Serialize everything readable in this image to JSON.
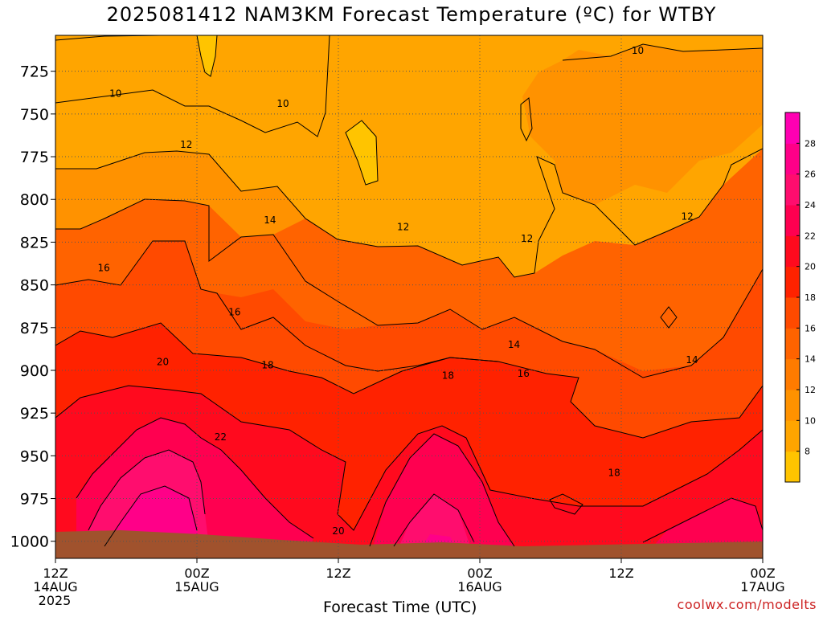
{
  "title": "2025081412 NAM3KM Forecast Temperature (ºC) for WTBY",
  "credit": "coolwx.com/modelts",
  "chart_data": {
    "type": "heatmap",
    "title": "2025081412 NAM3KM Forecast Temperature (ºC) for WTBY",
    "xlabel": "Forecast Time (UTC)",
    "ylabel": "",
    "x_ticks": [
      {
        "hour": 0,
        "line1": "12Z",
        "line2": "14AUG",
        "line3": "2025"
      },
      {
        "hour": 12,
        "line1": "00Z",
        "line2": "15AUG",
        "line3": ""
      },
      {
        "hour": 24,
        "line1": "12Z",
        "line2": "",
        "line3": ""
      },
      {
        "hour": 36,
        "line1": "00Z",
        "line2": "16AUG",
        "line3": ""
      },
      {
        "hour": 48,
        "line1": "12Z",
        "line2": "",
        "line3": ""
      },
      {
        "hour": 60,
        "line1": "00Z",
        "line2": "17AUG",
        "line3": ""
      }
    ],
    "y_ticks": [
      "725",
      "750",
      "775",
      "800",
      "825",
      "850",
      "875",
      "900",
      "925",
      "950",
      "975",
      "1000"
    ],
    "y_values": [
      725,
      750,
      775,
      800,
      825,
      850,
      875,
      900,
      925,
      950,
      975,
      1000
    ],
    "xlim": [
      0,
      60
    ],
    "ylim": [
      704,
      1010
    ],
    "colorbar": {
      "labels": [
        "8",
        "10",
        "12",
        "14",
        "16",
        "18",
        "20",
        "22",
        "24",
        "26",
        "28"
      ],
      "levels": [
        6,
        8,
        10,
        12,
        14,
        16,
        18,
        20,
        22,
        24,
        26,
        28,
        30
      ],
      "colors": [
        "#ffc400",
        "#ffa500",
        "#ff9200",
        "#ff7b00",
        "#ff6300",
        "#ff4a00",
        "#ff2200",
        "#ff0a1e",
        "#ff0050",
        "#ff0d6e",
        "#ff0088",
        "#ff00b2"
      ]
    },
    "contour_labels": [
      {
        "text": "10",
        "hour": 49.4,
        "hPa": 713
      },
      {
        "text": "10",
        "hour": 5.1,
        "hPa": 738
      },
      {
        "text": "10",
        "hour": 19.3,
        "hPa": 744
      },
      {
        "text": "12",
        "hour": 11.1,
        "hPa": 768
      },
      {
        "text": "12",
        "hour": 29.5,
        "hPa": 816
      },
      {
        "text": "12",
        "hour": 40.0,
        "hPa": 823
      },
      {
        "text": "12",
        "hour": 53.6,
        "hPa": 810
      },
      {
        "text": "14",
        "hour": 18.2,
        "hPa": 812
      },
      {
        "text": "14",
        "hour": 38.9,
        "hPa": 885
      },
      {
        "text": "14",
        "hour": 54.0,
        "hPa": 894
      },
      {
        "text": "16",
        "hour": 4.1,
        "hPa": 840
      },
      {
        "text": "16",
        "hour": 15.2,
        "hPa": 866
      },
      {
        "text": "16",
        "hour": 39.7,
        "hPa": 902
      },
      {
        "text": "18",
        "hour": 18.0,
        "hPa": 897
      },
      {
        "text": "18",
        "hour": 33.3,
        "hPa": 903
      },
      {
        "text": "18",
        "hour": 47.4,
        "hPa": 960
      },
      {
        "text": "20",
        "hour": 9.1,
        "hPa": 895
      },
      {
        "text": "20",
        "hour": 24.0,
        "hPa": 994
      },
      {
        "text": "22",
        "hour": 14.0,
        "hPa": 939
      }
    ],
    "legend": "right colorbar",
    "grid": true
  }
}
